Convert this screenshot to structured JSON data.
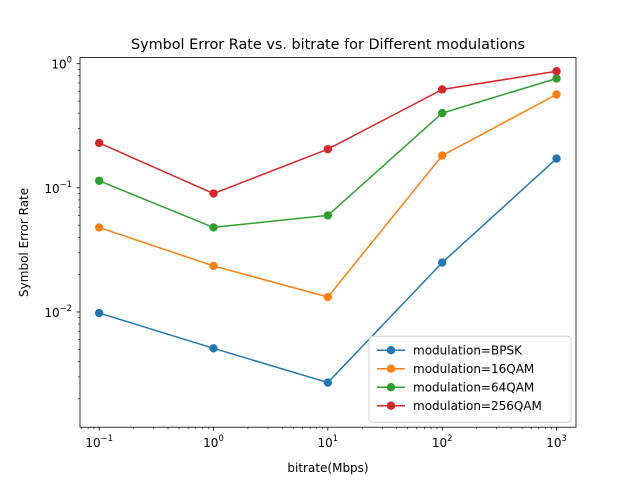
{
  "chart_data": {
    "type": "line",
    "title": "Symbol Error Rate vs. bitrate for Different modulations",
    "xlabel": "bitrate(Mbps)",
    "ylabel": "Symbol Error Rate",
    "xscale": "log",
    "yscale": "log",
    "xlim": [
      0.068,
      1480
    ],
    "ylim": [
      0.00118,
      1.12
    ],
    "x": [
      0.1,
      1,
      10,
      100,
      1000
    ],
    "xticks": [
      {
        "value": 0.1,
        "base": "10",
        "exp": "−1"
      },
      {
        "value": 1,
        "base": "10",
        "exp": "0"
      },
      {
        "value": 10,
        "base": "10",
        "exp": "1"
      },
      {
        "value": 100,
        "base": "10",
        "exp": "2"
      },
      {
        "value": 1000,
        "base": "10",
        "exp": "3"
      }
    ],
    "yticks": [
      {
        "value": 0.01,
        "base": "10",
        "exp": "−2"
      },
      {
        "value": 0.1,
        "base": "10",
        "exp": "−1"
      },
      {
        "value": 1,
        "base": "10",
        "exp": "0"
      }
    ],
    "grid": false,
    "legend_position": "lower-right",
    "series": [
      {
        "name": "modulation=BPSK",
        "color": "#1f77b4",
        "values": [
          0.0098,
          0.0051,
          0.0027,
          0.025,
          0.172
        ]
      },
      {
        "name": "modulation=16QAM",
        "color": "#ff7f0e",
        "values": [
          0.048,
          0.0235,
          0.0132,
          0.182,
          0.565
        ]
      },
      {
        "name": "modulation=64QAM",
        "color": "#2ca02c",
        "values": [
          0.114,
          0.048,
          0.06,
          0.4,
          0.76
        ]
      },
      {
        "name": "modulation=256QAM",
        "color": "#d62728",
        "values": [
          0.23,
          0.09,
          0.205,
          0.62,
          0.87
        ]
      }
    ]
  }
}
